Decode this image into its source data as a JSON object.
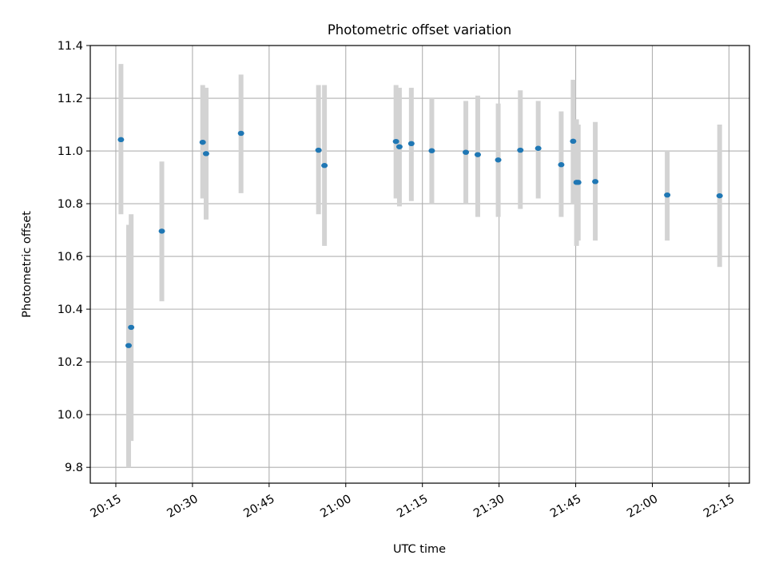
{
  "chart_data": {
    "type": "scatter",
    "title": "Photometric offset variation",
    "xlabel": "UTC time",
    "ylabel": "Photometric offset",
    "x_ticks": [
      "20:15",
      "20:30",
      "20:45",
      "21:00",
      "21:15",
      "21:30",
      "21:45",
      "22:00",
      "22:15"
    ],
    "y_ticks": [
      "9.8",
      "10.0",
      "10.2",
      "10.4",
      "10.6",
      "10.8",
      "11.0",
      "11.2",
      "11.4"
    ],
    "xlim": [
      "20:10",
      "22:19"
    ],
    "ylim": [
      9.74,
      11.4
    ],
    "grid": true,
    "marker_color": "#1f77b4",
    "errorbar_color": "#d3d3d3",
    "points": [
      {
        "t": "20:16:00",
        "y": 11.043,
        "lo": 10.76,
        "hi": 11.33
      },
      {
        "t": "20:17:30",
        "y": 10.262,
        "lo": 9.8,
        "hi": 10.72
      },
      {
        "t": "20:18:00",
        "y": 10.331,
        "lo": 9.9,
        "hi": 10.76
      },
      {
        "t": "20:24:00",
        "y": 10.696,
        "lo": 10.43,
        "hi": 10.96
      },
      {
        "t": "20:32:00",
        "y": 11.033,
        "lo": 10.82,
        "hi": 11.25
      },
      {
        "t": "20:32:40",
        "y": 10.99,
        "lo": 10.74,
        "hi": 11.24
      },
      {
        "t": "20:39:30",
        "y": 11.067,
        "lo": 10.84,
        "hi": 11.29
      },
      {
        "t": "20:54:40",
        "y": 11.003,
        "lo": 10.76,
        "hi": 11.25
      },
      {
        "t": "20:55:50",
        "y": 10.945,
        "lo": 10.64,
        "hi": 11.25
      },
      {
        "t": "21:09:50",
        "y": 11.036,
        "lo": 10.82,
        "hi": 11.25
      },
      {
        "t": "21:10:30",
        "y": 11.016,
        "lo": 10.79,
        "hi": 11.24
      },
      {
        "t": "21:12:50",
        "y": 11.028,
        "lo": 10.81,
        "hi": 11.24
      },
      {
        "t": "21:16:50",
        "y": 11.001,
        "lo": 10.8,
        "hi": 11.2
      },
      {
        "t": "21:23:30",
        "y": 10.995,
        "lo": 10.8,
        "hi": 11.19
      },
      {
        "t": "21:25:50",
        "y": 10.986,
        "lo": 10.75,
        "hi": 11.21
      },
      {
        "t": "21:29:50",
        "y": 10.966,
        "lo": 10.75,
        "hi": 11.18
      },
      {
        "t": "21:34:10",
        "y": 11.003,
        "lo": 10.78,
        "hi": 11.23
      },
      {
        "t": "21:37:40",
        "y": 11.01,
        "lo": 10.82,
        "hi": 11.19
      },
      {
        "t": "21:42:10",
        "y": 10.948,
        "lo": 10.75,
        "hi": 11.15
      },
      {
        "t": "21:44:30",
        "y": 11.037,
        "lo": 10.8,
        "hi": 11.27
      },
      {
        "t": "21:45:10",
        "y": 10.881,
        "lo": 10.64,
        "hi": 11.12
      },
      {
        "t": "21:45:30",
        "y": 10.881,
        "lo": 10.66,
        "hi": 11.1
      },
      {
        "t": "21:48:50",
        "y": 10.884,
        "lo": 10.66,
        "hi": 11.11
      },
      {
        "t": "22:02:55",
        "y": 10.833,
        "lo": 10.66,
        "hi": 11.0
      },
      {
        "t": "22:13:10",
        "y": 10.83,
        "lo": 10.56,
        "hi": 11.1
      }
    ]
  }
}
